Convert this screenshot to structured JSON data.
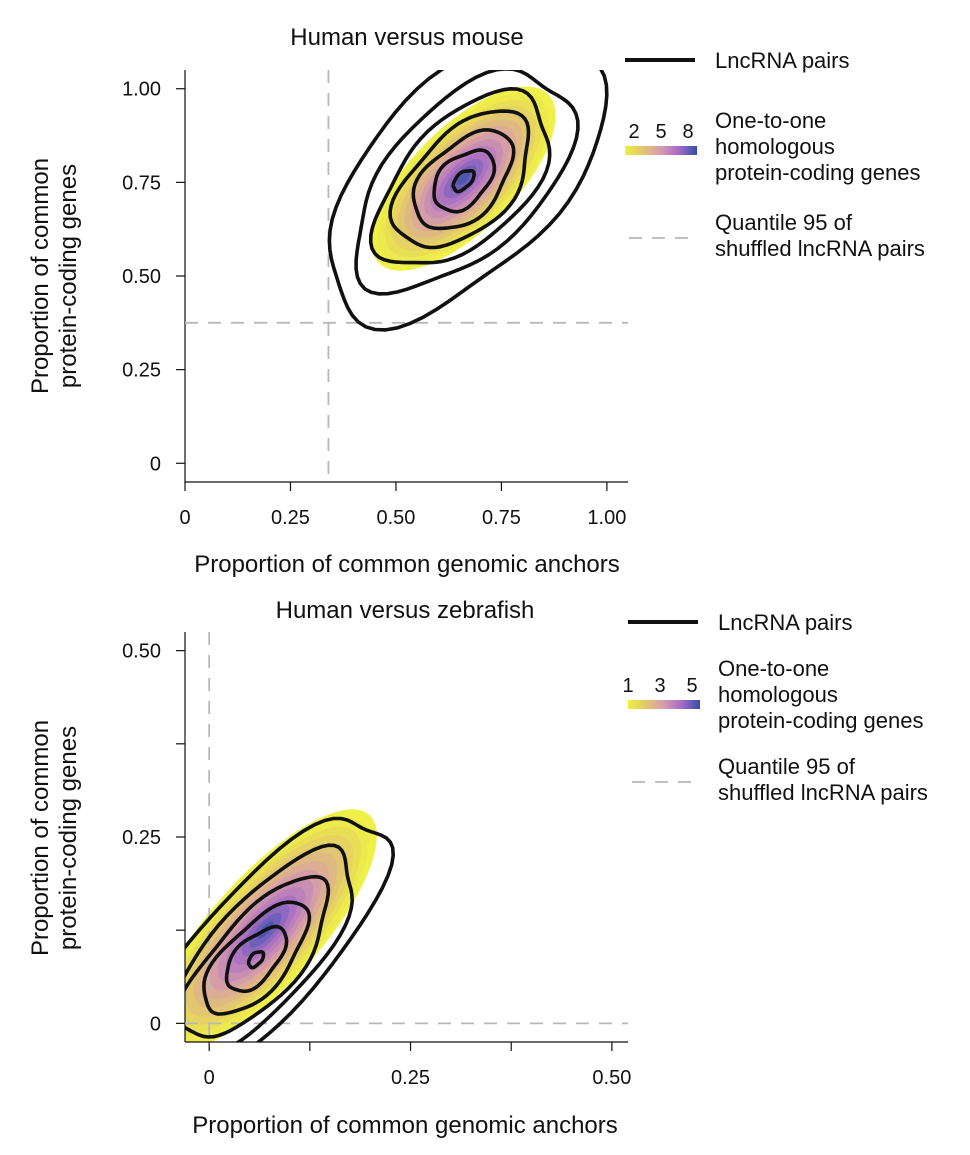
{
  "chart_data": [
    {
      "type": "heatmap",
      "subtype": "2d-density-with-contours",
      "title": "Human versus mouse",
      "xlabel": "Proportion of common genomic anchors",
      "ylabel_lines": [
        "Proportion of common",
        "protein-coding genes"
      ],
      "xlim": [
        0,
        1.05
      ],
      "ylim": [
        -0.05,
        1.05
      ],
      "xticks": [
        0,
        0.25,
        0.5,
        0.75,
        1.0
      ],
      "xtick_labels": [
        "0",
        "0.25",
        "0.50",
        "0.75",
        "1.00"
      ],
      "yticks": [
        0,
        0.25,
        0.5,
        0.75,
        1.0
      ],
      "ytick_labels": [
        "0",
        "0.25",
        "0.50",
        "0.75",
        "1.00"
      ],
      "grid": false,
      "legend_position": "right",
      "density_peak": {
        "x": 0.66,
        "y": 0.76
      },
      "density_spread": {
        "major": 0.3,
        "minor": 0.13
      },
      "density_angle_deg": 45,
      "density_color_range": [
        0,
        9
      ],
      "colorbar": {
        "label_lines": [
          "One-to-one",
          "homologous",
          "protein-coding genes"
        ],
        "ticks": [
          2,
          5,
          8
        ],
        "range": [
          1,
          9
        ],
        "colors": [
          "#eef03f",
          "#e2c66f",
          "#d79bb0",
          "#a66ac7",
          "#2f4fa8"
        ]
      },
      "quantile_95": {
        "x": 0.34,
        "y": 0.375
      },
      "contours": {
        "label": "LncRNA pairs",
        "peak": {
          "x": 0.66,
          "y": 0.755
        },
        "levels": [
          {
            "a": 0.032,
            "b": 0.018
          },
          {
            "a": 0.09,
            "b": 0.058
          },
          {
            "a": 0.15,
            "b": 0.09
          },
          {
            "a": 0.21,
            "b": 0.12
          },
          {
            "a": 0.27,
            "b": 0.15
          },
          {
            "a": 0.34,
            "b": 0.185
          },
          {
            "a": 0.43,
            "b": 0.235
          }
        ]
      },
      "legend": {
        "line_label": "LncRNA pairs",
        "quantile_label_lines": [
          "Quantile 95 of",
          "shuffled lncRNA pairs"
        ]
      }
    },
    {
      "type": "heatmap",
      "subtype": "2d-density-with-contours",
      "title": "Human versus zebrafish",
      "xlabel": "Proportion of common genomic anchors",
      "ylabel_lines": [
        "Proportion of common",
        "protein-coding genes"
      ],
      "xlim": [
        -0.03,
        0.52
      ],
      "ylim": [
        -0.025,
        0.525
      ],
      "xticks": [
        0,
        0.125,
        0.25,
        0.375,
        0.5
      ],
      "xtick_labels": [
        "0",
        "",
        "0.25",
        "",
        "0.50"
      ],
      "yticks": [
        0,
        0.125,
        0.25,
        0.375,
        0.5
      ],
      "ytick_labels": [
        "0",
        "",
        "0.25",
        "",
        "0.50"
      ],
      "grid": false,
      "legend_position": "right",
      "density_peak": {
        "x": 0.07,
        "y": 0.125
      },
      "density_spread": {
        "major": 0.2,
        "minor": 0.07
      },
      "density_angle_deg": 48,
      "density_color_range": [
        0,
        6
      ],
      "colorbar": {
        "label_lines": [
          "One-to-one",
          "homologous",
          "protein-coding genes"
        ],
        "ticks": [
          1,
          3,
          5
        ],
        "range": [
          1,
          5.5
        ],
        "colors": [
          "#eef03f",
          "#e2c66f",
          "#d79bb0",
          "#a66ac7",
          "#2f4fa8"
        ]
      },
      "quantile_95": {
        "x": 0.0,
        "y": 0.0
      },
      "contours": {
        "label": "LncRNA pairs",
        "peak": {
          "x": 0.058,
          "y": 0.086
        },
        "levels": [
          {
            "a": 0.012,
            "b": 0.007
          },
          {
            "a": 0.05,
            "b": 0.026
          },
          {
            "a": 0.09,
            "b": 0.04
          },
          {
            "a": 0.13,
            "b": 0.053
          },
          {
            "a": 0.18,
            "b": 0.065
          },
          {
            "a": 0.24,
            "b": 0.08
          }
        ]
      },
      "legend": {
        "line_label": "LncRNA pairs",
        "quantile_label_lines": [
          "Quantile 95 of",
          "shuffled lncRNA pairs"
        ]
      }
    }
  ]
}
